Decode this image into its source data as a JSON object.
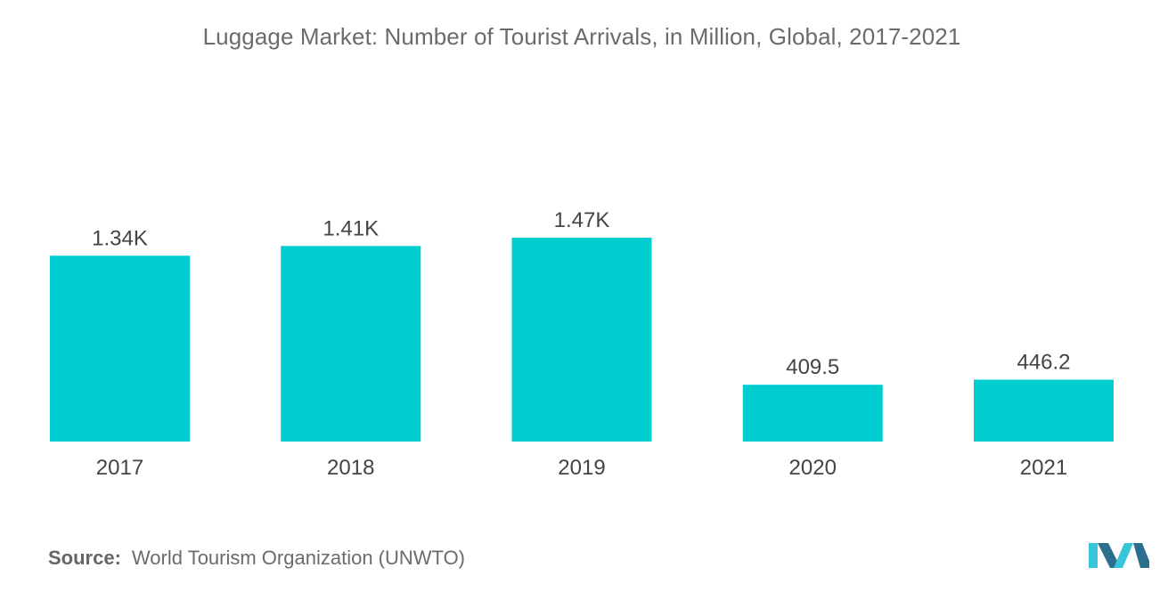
{
  "title": "Luggage Market: Number of Tourist Arrivals, in Million, Global, 2017-2021",
  "source": {
    "label": "Source:",
    "text": "World Tourism Organization (UNWTO)"
  },
  "colors": {
    "bar": "#00CDD0",
    "text": "#444444",
    "title": "#6B6B6B",
    "logo_dark": "#2C6E8E",
    "logo_light": "#37C6D8"
  },
  "chart_data": {
    "type": "bar",
    "title": "Luggage Market: Number of Tourist Arrivals, in Million, Global, 2017-2021",
    "xlabel": "",
    "ylabel": "",
    "categories": [
      "2017",
      "2018",
      "2019",
      "2020",
      "2021"
    ],
    "values": [
      1340,
      1410,
      1470,
      409.5,
      446.2
    ],
    "data_labels": [
      "1.34K",
      "1.41K",
      "1.47K",
      "409.5",
      "446.2"
    ],
    "ylim": [
      0,
      1470
    ],
    "grid": false,
    "legend": "none"
  }
}
